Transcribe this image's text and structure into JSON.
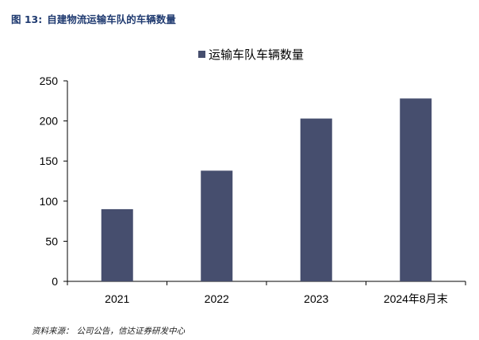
{
  "figure": {
    "label": "图 13:",
    "caption": "自建物流运输车队的车辆数量"
  },
  "source": {
    "label": "资料来源：",
    "text": "公司公告，信达证券研发中心"
  },
  "colors": {
    "bar": "#464e6e",
    "title": "#1f3a70",
    "axis": "#000000"
  },
  "chart_data": {
    "type": "bar",
    "categories": [
      "2021",
      "2022",
      "2023",
      "2024年8月末"
    ],
    "series": [
      {
        "name": "运输车队车辆数量",
        "values": [
          90,
          138,
          203,
          228
        ]
      }
    ],
    "title": "",
    "xlabel": "",
    "ylabel": "",
    "ylim": [
      0,
      250
    ],
    "yticks": [
      0,
      50,
      100,
      150,
      200,
      250
    ],
    "grid": false,
    "legend_position": "top"
  }
}
